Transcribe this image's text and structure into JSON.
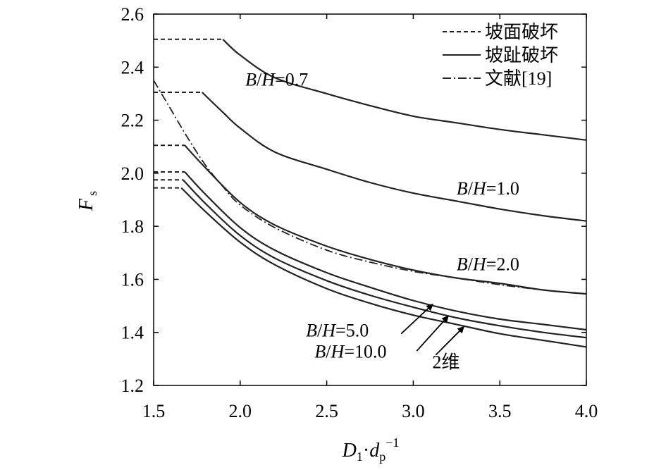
{
  "chart_data": {
    "type": "line",
    "xlim": [
      1.5,
      4.0
    ],
    "ylim": [
      1.2,
      2.6
    ],
    "x_ticks": [
      "1.5",
      "2.0",
      "2.5",
      "3.0",
      "3.5",
      "4.0"
    ],
    "y_ticks": [
      "1.2",
      "1.4",
      "1.6",
      "1.8",
      "2.0",
      "2.2",
      "2.4",
      "2.6"
    ],
    "xlabel": {
      "main": "D",
      "sub1": "1",
      "dot": "·",
      "main2": "d",
      "sub2": "p",
      "sup": "−1"
    },
    "ylabel": {
      "main": "F",
      "sub": "s"
    },
    "grid": false,
    "legend_position": "top-right",
    "legend": [
      {
        "label": "坡面破坏",
        "style": "dashed"
      },
      {
        "label": "坡趾破坏",
        "style": "solid"
      },
      {
        "label": "文献[19]",
        "style": "dashdot"
      }
    ],
    "series": [
      {
        "label": "B/H=0.7",
        "plateau": 2.505,
        "x_break": 1.9,
        "solid": [
          [
            1.9,
            2.505
          ],
          [
            2.0,
            2.445
          ],
          [
            2.2,
            2.36
          ],
          [
            2.5,
            2.3
          ],
          [
            2.75,
            2.255
          ],
          [
            3.0,
            2.215
          ],
          [
            3.25,
            2.19
          ],
          [
            3.5,
            2.165
          ],
          [
            3.75,
            2.145
          ],
          [
            4.0,
            2.125
          ]
        ]
      },
      {
        "label": "B/H=1.0",
        "plateau": 2.305,
        "x_break": 1.78,
        "solid": [
          [
            1.78,
            2.305
          ],
          [
            1.9,
            2.23
          ],
          [
            2.0,
            2.17
          ],
          [
            2.2,
            2.08
          ],
          [
            2.5,
            2.015
          ],
          [
            2.75,
            1.965
          ],
          [
            3.0,
            1.925
          ],
          [
            3.25,
            1.895
          ],
          [
            3.5,
            1.865
          ],
          [
            3.75,
            1.84
          ],
          [
            4.0,
            1.82
          ]
        ]
      },
      {
        "label": "B/H=2.0",
        "plateau": 2.105,
        "x_break": 1.68,
        "solid": [
          [
            1.68,
            2.105
          ],
          [
            1.8,
            2.02
          ],
          [
            2.0,
            1.89
          ],
          [
            2.2,
            1.805
          ],
          [
            2.5,
            1.725
          ],
          [
            2.75,
            1.675
          ],
          [
            3.0,
            1.635
          ],
          [
            3.25,
            1.605
          ],
          [
            3.5,
            1.585
          ],
          [
            3.75,
            1.56
          ],
          [
            4.0,
            1.545
          ]
        ]
      },
      {
        "label": "B/H=5.0",
        "plateau": 2.005,
        "x_break": 1.68,
        "solid": [
          [
            1.68,
            2.005
          ],
          [
            1.8,
            1.92
          ],
          [
            2.0,
            1.795
          ],
          [
            2.2,
            1.71
          ],
          [
            2.5,
            1.625
          ],
          [
            2.75,
            1.57
          ],
          [
            3.0,
            1.52
          ],
          [
            3.25,
            1.48
          ],
          [
            3.5,
            1.45
          ],
          [
            3.75,
            1.43
          ],
          [
            4.0,
            1.41
          ]
        ]
      },
      {
        "label": "B/H=10.0",
        "plateau": 1.975,
        "x_break": 1.67,
        "solid": [
          [
            1.67,
            1.975
          ],
          [
            1.8,
            1.885
          ],
          [
            2.0,
            1.765
          ],
          [
            2.2,
            1.68
          ],
          [
            2.5,
            1.595
          ],
          [
            2.75,
            1.54
          ],
          [
            3.0,
            1.495
          ],
          [
            3.25,
            1.455
          ],
          [
            3.5,
            1.425
          ],
          [
            3.75,
            1.4
          ],
          [
            4.0,
            1.38
          ]
        ]
      },
      {
        "label": "2维",
        "plateau": 1.945,
        "x_break": 1.66,
        "solid": [
          [
            1.66,
            1.945
          ],
          [
            1.8,
            1.855
          ],
          [
            2.0,
            1.74
          ],
          [
            2.2,
            1.655
          ],
          [
            2.5,
            1.565
          ],
          [
            2.75,
            1.51
          ],
          [
            3.0,
            1.465
          ],
          [
            3.25,
            1.43
          ],
          [
            3.5,
            1.395
          ],
          [
            3.75,
            1.37
          ],
          [
            4.0,
            1.345
          ]
        ]
      }
    ],
    "reference_19": [
      [
        1.5,
        2.35
      ],
      [
        1.6,
        2.24
      ],
      [
        1.7,
        2.13
      ],
      [
        1.8,
        2.03
      ],
      [
        1.9,
        1.95
      ],
      [
        2.0,
        1.88
      ],
      [
        2.2,
        1.795
      ],
      [
        2.5,
        1.71
      ],
      [
        2.75,
        1.665
      ],
      [
        3.0,
        1.63
      ],
      [
        3.25,
        1.605
      ],
      [
        3.5,
        1.58
      ],
      [
        3.75,
        1.56
      ],
      [
        4.0,
        1.545
      ]
    ],
    "annotations": [
      {
        "label": "B/H=0.7",
        "prefix": "B",
        "slash": "/",
        "mid": "H",
        "value": "=0.7",
        "x": 2.03,
        "y": 2.33
      },
      {
        "label": "B/H=1.0",
        "prefix": "B",
        "slash": "/",
        "mid": "H",
        "value": "=1.0",
        "x": 3.25,
        "y": 1.92
      },
      {
        "label": "B/H=2.0",
        "prefix": "B",
        "slash": "/",
        "mid": "H",
        "value": "=2.0",
        "x": 3.25,
        "y": 1.635
      },
      {
        "label": "B/H=5.0",
        "prefix": "B",
        "slash": "/",
        "mid": "H",
        "value": "=5.0",
        "x": 2.38,
        "y": 1.385,
        "arrow_from": [
          2.93,
          1.395
        ],
        "arrow_to": [
          3.11,
          1.505
        ]
      },
      {
        "label": "B/H=10.0",
        "prefix": "B",
        "slash": "/",
        "mid": "H",
        "value": "=10.0",
        "x": 2.43,
        "y": 1.305,
        "arrow_from": [
          3.02,
          1.33
        ],
        "arrow_to": [
          3.2,
          1.46
        ]
      },
      {
        "label": "2维",
        "text": "2维",
        "x": 3.11,
        "y": 1.265,
        "arrow_from": [
          3.13,
          1.315
        ],
        "arrow_to": [
          3.29,
          1.42
        ]
      }
    ]
  }
}
